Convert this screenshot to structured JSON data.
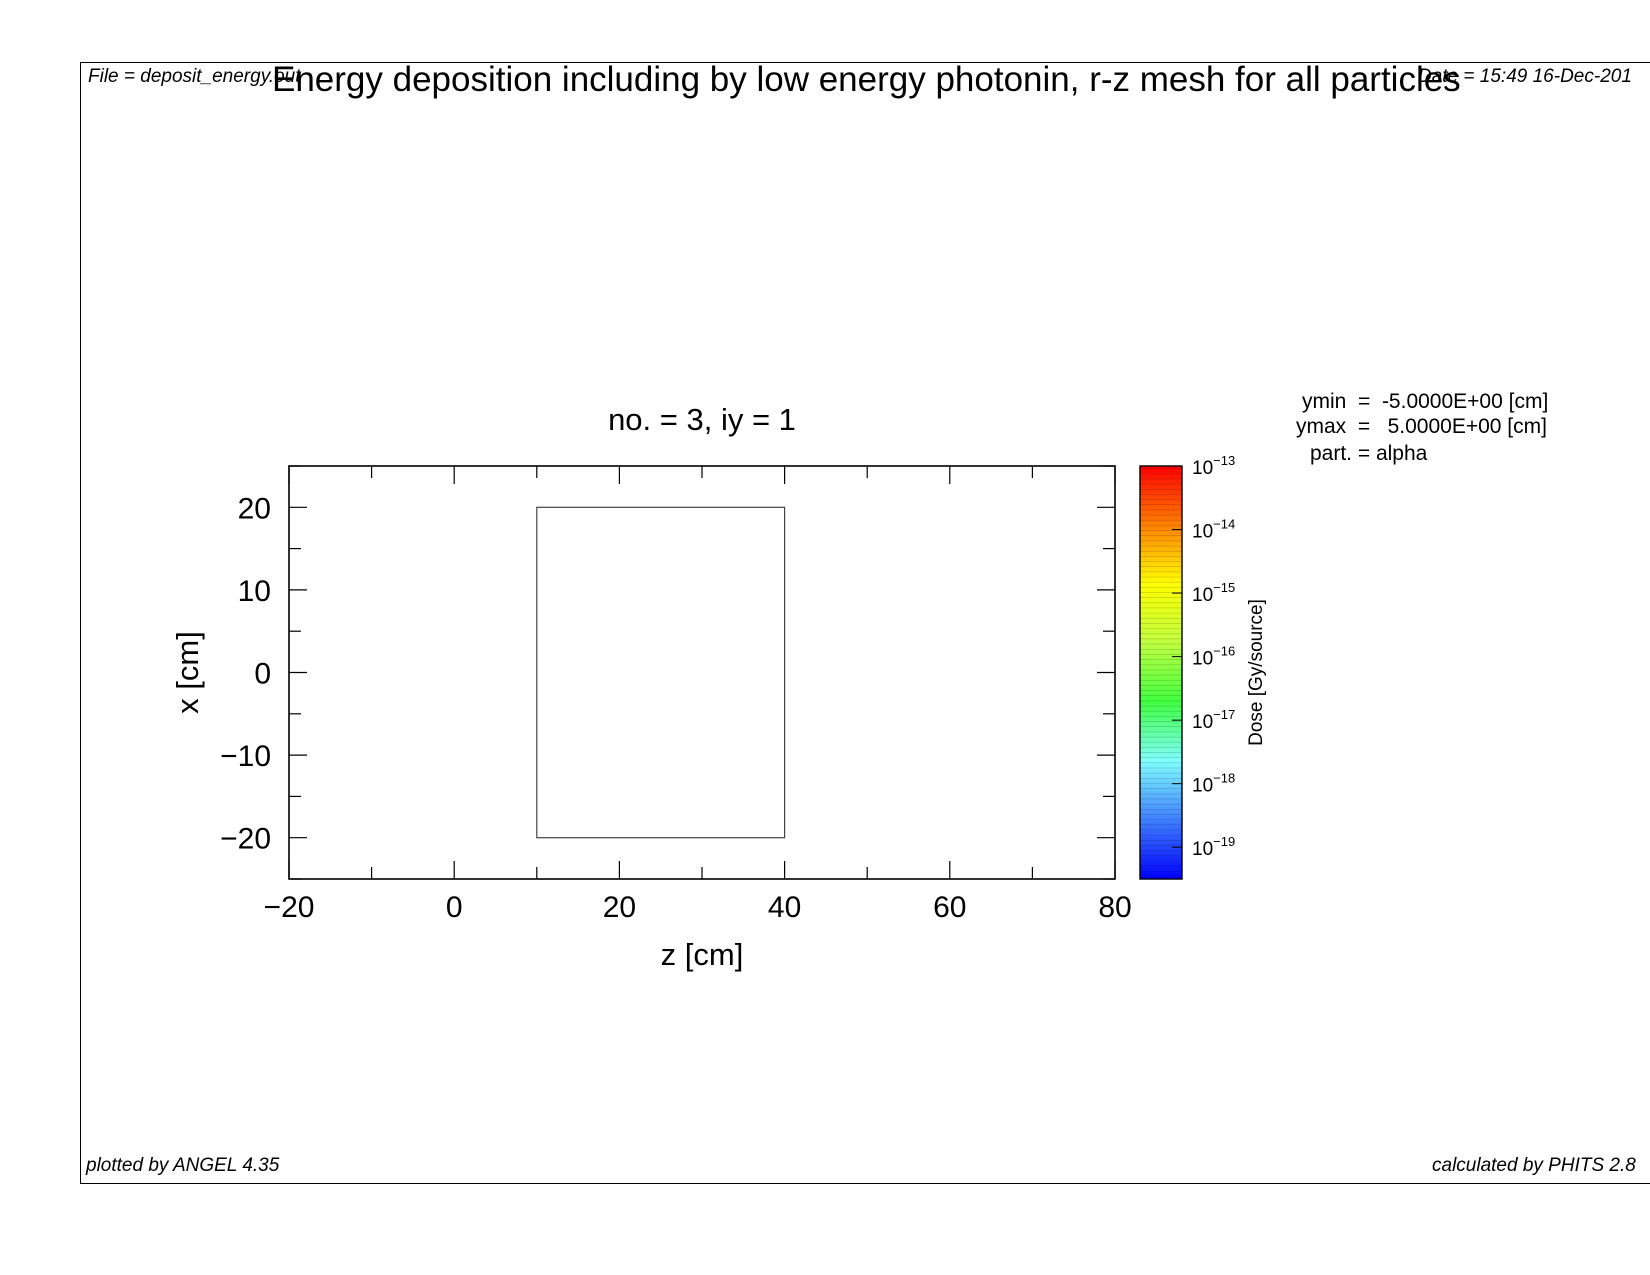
{
  "header": {
    "file_label": "File = deposit_energy.out",
    "title": "Energy deposition including by low energy photonin, r-z mesh for all particles",
    "date_label": "Date = 15:49 16-Dec-201"
  },
  "footer": {
    "plotted_by": "plotted by ANGEL 4.35",
    "calculated_by": "calculated by PHITS 2.8"
  },
  "info": {
    "ymin": "ymin  =  -5.0000E+00 [cm]",
    "ymax": "ymax  =   5.0000E+00 [cm]",
    "part": "part. = alpha"
  },
  "chart_data": {
    "type": "heatmap",
    "title": "no. =  3,  iy =  1",
    "xlabel": "z [cm]",
    "ylabel": "x [cm]",
    "xlim": [
      -20,
      80
    ],
    "ylim": [
      -25,
      25
    ],
    "x_ticks": [
      -20,
      0,
      20,
      40,
      60,
      80
    ],
    "y_ticks": [
      -20,
      -10,
      0,
      10,
      20
    ],
    "x_minor_step": 10,
    "y_minor_step": 5,
    "geometry_outline": {
      "z": [
        10,
        40
      ],
      "x": [
        -20,
        20
      ]
    },
    "values": [],
    "colorbar": {
      "label": "Dose [Gy/source]",
      "scale": "log",
      "range_exponent": [
        -19.5,
        -13
      ],
      "tick_exponents": [
        -13,
        -14,
        -15,
        -16,
        -17,
        -18,
        -19
      ],
      "colors": [
        "#0000ff",
        "#3f7fff",
        "#80ffff",
        "#40ff40",
        "#c0ff40",
        "#ffff00",
        "#ff8000",
        "#ff0000"
      ]
    }
  }
}
